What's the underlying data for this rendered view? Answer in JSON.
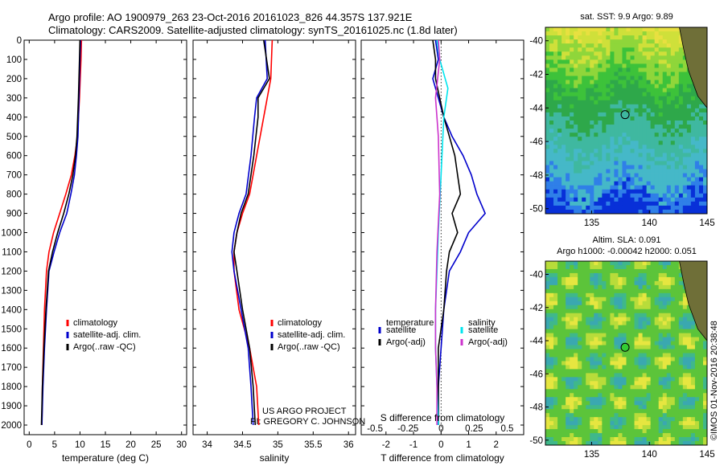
{
  "header": {
    "line1": "Argo profile: AO 1900979_263 23-Oct-2016 20161023_826 44.357S 137.921E",
    "line2": "Climatology: CARS2009. Satellite-adjusted climatology: synTS_20161025.nc (1.8d later)"
  },
  "colors": {
    "climatology": "#ff0000",
    "satellite": "#0000cc",
    "argo": "#000000",
    "sat_salinity": "#00e5ee",
    "argo_salinity": "#cc33cc"
  },
  "legend_common": {
    "climatology": "climatology",
    "satellite": "satellite-adj. clim.",
    "argo": "Argo(..raw -QC)"
  },
  "legend_diff": {
    "temp_title": "temperature",
    "temp_sat": "satellite",
    "temp_argo": "Argo(-adj)",
    "sal_title": "salinity",
    "sal_sat": "satellite",
    "sal_argo": "Argo(-adj)"
  },
  "notes": {
    "project_line1": "US ARGO PROJECT",
    "project_line2": "PI: GREGORY C. JOHNSON",
    "credit": "©IMOS 01-Nov-2016 20:38:48"
  },
  "chart_data": [
    {
      "type": "line",
      "xlabel": "temperature (deg C)",
      "ylabel": "",
      "xlim": [
        -1,
        31
      ],
      "ylim": [
        2050,
        0
      ],
      "xticks": [
        0,
        5,
        10,
        15,
        20,
        25,
        30
      ],
      "yticks": [
        0,
        100,
        200,
        300,
        400,
        500,
        600,
        700,
        800,
        900,
        1000,
        1100,
        1200,
        1300,
        1400,
        1500,
        1600,
        1700,
        1800,
        1900,
        2000
      ],
      "series": [
        {
          "name": "climatology",
          "color": "#ff0000",
          "x": [
            10.3,
            10.2,
            9.9,
            9.5,
            9.0,
            8.3,
            7.2,
            6.0,
            4.8,
            3.9,
            3.4,
            3.0,
            2.8,
            2.6,
            2.5
          ],
          "y": [
            0,
            100,
            300,
            500,
            600,
            700,
            800,
            900,
            1000,
            1100,
            1200,
            1400,
            1600,
            1800,
            2000
          ]
        },
        {
          "name": "satellite-adj. clim.",
          "color": "#0000cc",
          "x": [
            10.1,
            10.0,
            9.8,
            9.6,
            9.3,
            8.9,
            8.2,
            7.4,
            6.0,
            4.9,
            3.9,
            3.4,
            3.0,
            2.7,
            2.5
          ],
          "y": [
            0,
            100,
            300,
            500,
            600,
            700,
            800,
            900,
            1000,
            1100,
            1200,
            1400,
            1600,
            1800,
            2000
          ]
        },
        {
          "name": "Argo(..raw -QC)",
          "color": "#000000",
          "x": [
            10.0,
            9.9,
            9.7,
            9.4,
            9.1,
            8.6,
            7.8,
            6.8,
            5.6,
            4.6,
            3.8,
            3.3,
            2.9,
            2.6,
            2.4
          ],
          "y": [
            0,
            100,
            300,
            500,
            600,
            700,
            800,
            900,
            1000,
            1100,
            1200,
            1400,
            1600,
            1800,
            2000
          ]
        }
      ]
    },
    {
      "type": "line",
      "xlabel": "salinity",
      "ylabel": "",
      "xlim": [
        33.8,
        36.1
      ],
      "ylim": [
        2050,
        0
      ],
      "xticks": [
        34,
        34.5,
        35,
        35.5,
        36
      ],
      "series": [
        {
          "name": "climatology",
          "color": "#ff0000",
          "x": [
            34.92,
            34.9,
            34.85,
            34.8,
            34.7,
            34.6,
            34.5,
            34.42,
            34.38,
            34.38,
            34.45,
            34.6,
            34.7,
            34.73
          ],
          "y": [
            0,
            200,
            300,
            400,
            600,
            800,
            900,
            1000,
            1100,
            1200,
            1400,
            1600,
            1800,
            2000
          ]
        },
        {
          "name": "satellite-adj. clim.",
          "color": "#0000cc",
          "x": [
            34.82,
            34.85,
            34.7,
            34.67,
            34.62,
            34.55,
            34.45,
            34.38,
            34.35,
            34.38,
            34.48,
            34.58,
            34.62,
            34.65
          ],
          "y": [
            0,
            200,
            300,
            400,
            600,
            800,
            900,
            1000,
            1100,
            1200,
            1400,
            1600,
            1800,
            2000
          ]
        },
        {
          "name": "Argo(..raw -QC)",
          "color": "#000000",
          "x": [
            34.8,
            34.88,
            34.72,
            34.72,
            34.66,
            34.58,
            34.48,
            34.42,
            34.38,
            34.42,
            34.5,
            34.6,
            34.65,
            34.68
          ],
          "y": [
            0,
            200,
            300,
            400,
            600,
            800,
            900,
            1000,
            1100,
            1200,
            1400,
            1600,
            1800,
            2000
          ]
        }
      ]
    },
    {
      "type": "line",
      "xlabel": "T difference from climatology",
      "xlabel2": "S difference from climatology",
      "xlim": [
        -2.9,
        3.0
      ],
      "ylim": [
        2050,
        0
      ],
      "xticks": [
        -2,
        -1,
        0,
        1,
        2
      ],
      "xticks2_labels": [
        "-0.5",
        "-0.25",
        "0",
        "0.25",
        "0.5"
      ],
      "xticks2_values": [
        -2.4,
        -1.2,
        0,
        1.2,
        2.4
      ],
      "series": [
        {
          "name": "temperature satellite",
          "color": "#0000cc",
          "x": [
            -0.2,
            -0.1,
            -0.3,
            0.1,
            0.4,
            0.8,
            1.1,
            1.3,
            1.6,
            1.0,
            0.7,
            0.3,
            0.1,
            0.0,
            -0.1,
            -0.1
          ],
          "y": [
            0,
            100,
            200,
            400,
            500,
            600,
            700,
            800,
            900,
            1000,
            1100,
            1200,
            1400,
            1600,
            1800,
            2000
          ]
        },
        {
          "name": "temperature Argo(-adj)",
          "color": "#000000",
          "x": [
            -0.3,
            -0.2,
            -0.2,
            0.1,
            0.3,
            0.5,
            0.6,
            0.7,
            0.4,
            0.6,
            0.3,
            0.2,
            0.1,
            -0.1,
            -0.1
          ],
          "y": [
            0,
            100,
            200,
            400,
            500,
            600,
            700,
            800,
            900,
            1000,
            1100,
            1200,
            1400,
            1600,
            2000
          ]
        },
        {
          "name": "salinity satellite",
          "color": "#00e5ee",
          "x": [
            -0.15,
            -0.05,
            0.25,
            0.1,
            0.0,
            -0.1,
            -0.15,
            -0.2,
            -0.2,
            -0.15,
            -0.1
          ],
          "y": [
            0,
            100,
            250,
            400,
            700,
            1000,
            1200,
            1400,
            1600,
            1800,
            2000
          ]
        },
        {
          "name": "salinity Argo(-adj)",
          "color": "#cc33cc",
          "x": [
            -0.1,
            -0.05,
            -0.2,
            -0.1,
            -0.05,
            -0.15,
            -0.2,
            -0.2,
            -0.15,
            -0.15
          ],
          "y": [
            0,
            100,
            300,
            500,
            800,
            1100,
            1400,
            1600,
            1800,
            2000
          ]
        }
      ]
    },
    {
      "type": "heatmap",
      "title": "sat. SST: 9.9 Argo: 9.89",
      "xlim": [
        131,
        145
      ],
      "ylim": [
        -50.3,
        -39.2
      ],
      "xticks": [
        135,
        140,
        145
      ],
      "yticks": [
        -40,
        -42,
        -44,
        -46,
        -48,
        -50
      ],
      "profile_location": [
        137.9,
        -44.4
      ]
    },
    {
      "type": "heatmap",
      "title": "Altim. SLA: 0.091",
      "title2": "Argo h1000: -0.00042 h2000: 0.051",
      "xlim": [
        131,
        145
      ],
      "ylim": [
        -50.3,
        -39.2
      ],
      "xticks": [
        135,
        140,
        145
      ],
      "yticks": [
        -40,
        -42,
        -44,
        -46,
        -48,
        -50
      ],
      "profile_location": [
        137.9,
        -44.4
      ]
    }
  ]
}
